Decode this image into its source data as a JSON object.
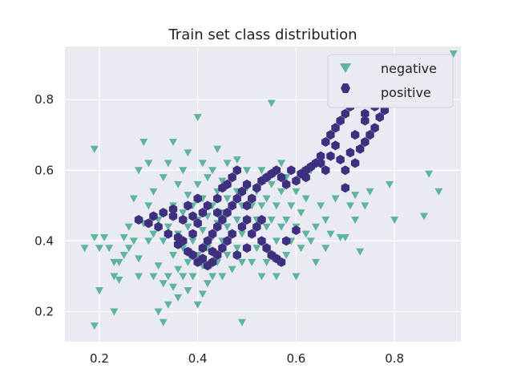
{
  "chart_data": {
    "type": "scatter",
    "title": "Train set class distribution",
    "xlabel": "",
    "ylabel": "",
    "xlim": [
      0.13,
      0.935
    ],
    "ylim": [
      0.115,
      0.95
    ],
    "xticks": [
      0.2,
      0.4,
      0.6,
      0.8
    ],
    "yticks": [
      0.2,
      0.4,
      0.6,
      0.8
    ],
    "x_tick_labels": [
      "0.2",
      "0.4",
      "0.6",
      "0.8"
    ],
    "y_tick_labels": [
      "0.2",
      "0.4",
      "0.6",
      "0.8"
    ],
    "grid": true,
    "legend_position": "top-right",
    "series": [
      {
        "name": "negative",
        "marker": "triangle-down",
        "color": "#5fb3a1",
        "points": [
          [
            0.17,
            0.38
          ],
          [
            0.19,
            0.16
          ],
          [
            0.19,
            0.41
          ],
          [
            0.19,
            0.66
          ],
          [
            0.2,
            0.26
          ],
          [
            0.2,
            0.38
          ],
          [
            0.21,
            0.41
          ],
          [
            0.22,
            0.38
          ],
          [
            0.23,
            0.2
          ],
          [
            0.23,
            0.3
          ],
          [
            0.23,
            0.34
          ],
          [
            0.24,
            0.29
          ],
          [
            0.24,
            0.34
          ],
          [
            0.25,
            0.41
          ],
          [
            0.25,
            0.36
          ],
          [
            0.26,
            0.38
          ],
          [
            0.26,
            0.44
          ],
          [
            0.27,
            0.4
          ],
          [
            0.27,
            0.52
          ],
          [
            0.28,
            0.3
          ],
          [
            0.28,
            0.35
          ],
          [
            0.28,
            0.6
          ],
          [
            0.29,
            0.45
          ],
          [
            0.29,
            0.68
          ],
          [
            0.3,
            0.4
          ],
          [
            0.3,
            0.5
          ],
          [
            0.3,
            0.62
          ],
          [
            0.31,
            0.3
          ],
          [
            0.31,
            0.42
          ],
          [
            0.31,
            0.54
          ],
          [
            0.32,
            0.2
          ],
          [
            0.32,
            0.33
          ],
          [
            0.32,
            0.46
          ],
          [
            0.33,
            0.17
          ],
          [
            0.33,
            0.28
          ],
          [
            0.33,
            0.4
          ],
          [
            0.33,
            0.58
          ],
          [
            0.34,
            0.22
          ],
          [
            0.34,
            0.3
          ],
          [
            0.34,
            0.44
          ],
          [
            0.34,
            0.62
          ],
          [
            0.35,
            0.27
          ],
          [
            0.35,
            0.36
          ],
          [
            0.35,
            0.5
          ],
          [
            0.35,
            0.68
          ],
          [
            0.36,
            0.24
          ],
          [
            0.36,
            0.32
          ],
          [
            0.36,
            0.42
          ],
          [
            0.36,
            0.56
          ],
          [
            0.37,
            0.3
          ],
          [
            0.37,
            0.38
          ],
          [
            0.37,
            0.48
          ],
          [
            0.37,
            0.6
          ],
          [
            0.38,
            0.26
          ],
          [
            0.38,
            0.34
          ],
          [
            0.38,
            0.44
          ],
          [
            0.38,
            0.53
          ],
          [
            0.38,
            0.65
          ],
          [
            0.39,
            0.3
          ],
          [
            0.39,
            0.4
          ],
          [
            0.39,
            0.5
          ],
          [
            0.4,
            0.22
          ],
          [
            0.4,
            0.36
          ],
          [
            0.4,
            0.46
          ],
          [
            0.4,
            0.56
          ],
          [
            0.4,
            0.75
          ],
          [
            0.41,
            0.25
          ],
          [
            0.41,
            0.33
          ],
          [
            0.41,
            0.43
          ],
          [
            0.41,
            0.52
          ],
          [
            0.41,
            0.62
          ],
          [
            0.42,
            0.28
          ],
          [
            0.42,
            0.38
          ],
          [
            0.42,
            0.47
          ],
          [
            0.42,
            0.58
          ],
          [
            0.43,
            0.3
          ],
          [
            0.43,
            0.41
          ],
          [
            0.43,
            0.5
          ],
          [
            0.43,
            0.6
          ],
          [
            0.44,
            0.34
          ],
          [
            0.44,
            0.45
          ],
          [
            0.44,
            0.54
          ],
          [
            0.44,
            0.66
          ],
          [
            0.45,
            0.3
          ],
          [
            0.45,
            0.4
          ],
          [
            0.45,
            0.48
          ],
          [
            0.45,
            0.57
          ],
          [
            0.46,
            0.36
          ],
          [
            0.46,
            0.44
          ],
          [
            0.46,
            0.52
          ],
          [
            0.46,
            0.62
          ],
          [
            0.47,
            0.32
          ],
          [
            0.47,
            0.42
          ],
          [
            0.47,
            0.5
          ],
          [
            0.47,
            0.58
          ],
          [
            0.48,
            0.38
          ],
          [
            0.48,
            0.46
          ],
          [
            0.48,
            0.54
          ],
          [
            0.48,
            0.63
          ],
          [
            0.49,
            0.17
          ],
          [
            0.49,
            0.34
          ],
          [
            0.49,
            0.42
          ],
          [
            0.49,
            0.5
          ],
          [
            0.5,
            0.38
          ],
          [
            0.5,
            0.46
          ],
          [
            0.5,
            0.55
          ],
          [
            0.5,
            0.6
          ],
          [
            0.51,
            0.34
          ],
          [
            0.51,
            0.42
          ],
          [
            0.51,
            0.5
          ],
          [
            0.52,
            0.38
          ],
          [
            0.52,
            0.46
          ],
          [
            0.52,
            0.54
          ],
          [
            0.53,
            0.3
          ],
          [
            0.53,
            0.4
          ],
          [
            0.53,
            0.5
          ],
          [
            0.53,
            0.6
          ],
          [
            0.54,
            0.34
          ],
          [
            0.54,
            0.44
          ],
          [
            0.54,
            0.52
          ],
          [
            0.55,
            0.36
          ],
          [
            0.55,
            0.46
          ],
          [
            0.55,
            0.56
          ],
          [
            0.55,
            0.79
          ],
          [
            0.56,
            0.3
          ],
          [
            0.56,
            0.4
          ],
          [
            0.56,
            0.5
          ],
          [
            0.57,
            0.34
          ],
          [
            0.57,
            0.44
          ],
          [
            0.57,
            0.54
          ],
          [
            0.57,
            0.62
          ],
          [
            0.58,
            0.36
          ],
          [
            0.58,
            0.46
          ],
          [
            0.58,
            0.58
          ],
          [
            0.59,
            0.4
          ],
          [
            0.59,
            0.5
          ],
          [
            0.6,
            0.3
          ],
          [
            0.6,
            0.44
          ],
          [
            0.6,
            0.54
          ],
          [
            0.61,
            0.38
          ],
          [
            0.61,
            0.48
          ],
          [
            0.62,
            0.42
          ],
          [
            0.62,
            0.52
          ],
          [
            0.63,
            0.4
          ],
          [
            0.63,
            0.6
          ],
          [
            0.64,
            0.34
          ],
          [
            0.64,
            0.44
          ],
          [
            0.65,
            0.5
          ],
          [
            0.66,
            0.38
          ],
          [
            0.66,
            0.46
          ],
          [
            0.67,
            0.42
          ],
          [
            0.68,
            0.52
          ],
          [
            0.69,
            0.41
          ],
          [
            0.7,
            0.41
          ],
          [
            0.7,
            0.55
          ],
          [
            0.71,
            0.5
          ],
          [
            0.72,
            0.46
          ],
          [
            0.72,
            0.53
          ],
          [
            0.73,
            0.37
          ],
          [
            0.74,
            0.5
          ],
          [
            0.75,
            0.54
          ],
          [
            0.79,
            0.56
          ],
          [
            0.8,
            0.46
          ],
          [
            0.86,
            0.47
          ],
          [
            0.87,
            0.59
          ],
          [
            0.89,
            0.54
          ],
          [
            0.92,
            0.93
          ],
          [
            0.7,
            0.84
          ]
        ]
      },
      {
        "name": "positive",
        "marker": "hexagon",
        "color": "#3f2f7f",
        "points": [
          [
            0.28,
            0.46
          ],
          [
            0.3,
            0.45
          ],
          [
            0.31,
            0.47
          ],
          [
            0.32,
            0.44
          ],
          [
            0.33,
            0.48
          ],
          [
            0.34,
            0.42
          ],
          [
            0.35,
            0.49
          ],
          [
            0.36,
            0.41
          ],
          [
            0.37,
            0.46
          ],
          [
            0.37,
            0.4
          ],
          [
            0.38,
            0.5
          ],
          [
            0.38,
            0.37
          ],
          [
            0.39,
            0.36
          ],
          [
            0.39,
            0.42
          ],
          [
            0.4,
            0.34
          ],
          [
            0.4,
            0.45
          ],
          [
            0.4,
            0.52
          ],
          [
            0.41,
            0.35
          ],
          [
            0.41,
            0.38
          ],
          [
            0.41,
            0.48
          ],
          [
            0.42,
            0.33
          ],
          [
            0.42,
            0.4
          ],
          [
            0.42,
            0.5
          ],
          [
            0.43,
            0.34
          ],
          [
            0.43,
            0.37
          ],
          [
            0.43,
            0.42
          ],
          [
            0.44,
            0.36
          ],
          [
            0.44,
            0.44
          ],
          [
            0.44,
            0.52
          ],
          [
            0.45,
            0.38
          ],
          [
            0.45,
            0.46
          ],
          [
            0.45,
            0.55
          ],
          [
            0.46,
            0.4
          ],
          [
            0.46,
            0.48
          ],
          [
            0.46,
            0.56
          ],
          [
            0.47,
            0.42
          ],
          [
            0.47,
            0.5
          ],
          [
            0.47,
            0.58
          ],
          [
            0.48,
            0.36
          ],
          [
            0.48,
            0.52
          ],
          [
            0.48,
            0.6
          ],
          [
            0.49,
            0.44
          ],
          [
            0.49,
            0.54
          ],
          [
            0.5,
            0.38
          ],
          [
            0.5,
            0.46
          ],
          [
            0.5,
            0.56
          ],
          [
            0.51,
            0.42
          ],
          [
            0.51,
            0.52
          ],
          [
            0.52,
            0.44
          ],
          [
            0.52,
            0.55
          ],
          [
            0.53,
            0.4
          ],
          [
            0.53,
            0.57
          ],
          [
            0.54,
            0.38
          ],
          [
            0.54,
            0.58
          ],
          [
            0.55,
            0.36
          ],
          [
            0.55,
            0.59
          ],
          [
            0.56,
            0.35
          ],
          [
            0.56,
            0.6
          ],
          [
            0.57,
            0.34
          ],
          [
            0.57,
            0.58
          ],
          [
            0.58,
            0.56
          ],
          [
            0.59,
            0.6
          ],
          [
            0.6,
            0.57
          ],
          [
            0.61,
            0.59
          ],
          [
            0.62,
            0.6
          ],
          [
            0.63,
            0.61
          ],
          [
            0.64,
            0.62
          ],
          [
            0.65,
            0.64
          ],
          [
            0.66,
            0.68
          ],
          [
            0.67,
            0.7
          ],
          [
            0.68,
            0.72
          ],
          [
            0.68,
            0.67
          ],
          [
            0.69,
            0.74
          ],
          [
            0.7,
            0.6
          ],
          [
            0.7,
            0.76
          ],
          [
            0.71,
            0.65
          ],
          [
            0.71,
            0.78
          ],
          [
            0.72,
            0.62
          ],
          [
            0.72,
            0.7
          ],
          [
            0.73,
            0.66
          ],
          [
            0.73,
            0.8
          ],
          [
            0.74,
            0.68
          ],
          [
            0.74,
            0.74
          ],
          [
            0.75,
            0.7
          ],
          [
            0.75,
            0.8
          ],
          [
            0.76,
            0.72
          ],
          [
            0.76,
            0.78
          ],
          [
            0.77,
            0.75
          ],
          [
            0.77,
            0.82
          ],
          [
            0.78,
            0.8
          ],
          [
            0.79,
            0.81
          ],
          [
            0.8,
            0.83
          ],
          [
            0.35,
            0.47
          ],
          [
            0.36,
            0.39
          ],
          [
            0.39,
            0.47
          ],
          [
            0.44,
            0.48
          ],
          [
            0.5,
            0.5
          ],
          [
            0.53,
            0.46
          ],
          [
            0.58,
            0.4
          ],
          [
            0.6,
            0.43
          ],
          [
            0.62,
            0.58
          ],
          [
            0.66,
            0.6
          ],
          [
            0.69,
            0.63
          ],
          [
            0.7,
            0.55
          ],
          [
            0.74,
            0.76
          ],
          [
            0.78,
            0.77
          ],
          [
            0.79,
            0.79
          ],
          [
            0.75,
            0.82
          ],
          [
            0.72,
            0.83
          ],
          [
            0.71,
            0.85
          ],
          [
            0.67,
            0.64
          ],
          [
            0.65,
            0.62
          ]
        ]
      }
    ]
  }
}
